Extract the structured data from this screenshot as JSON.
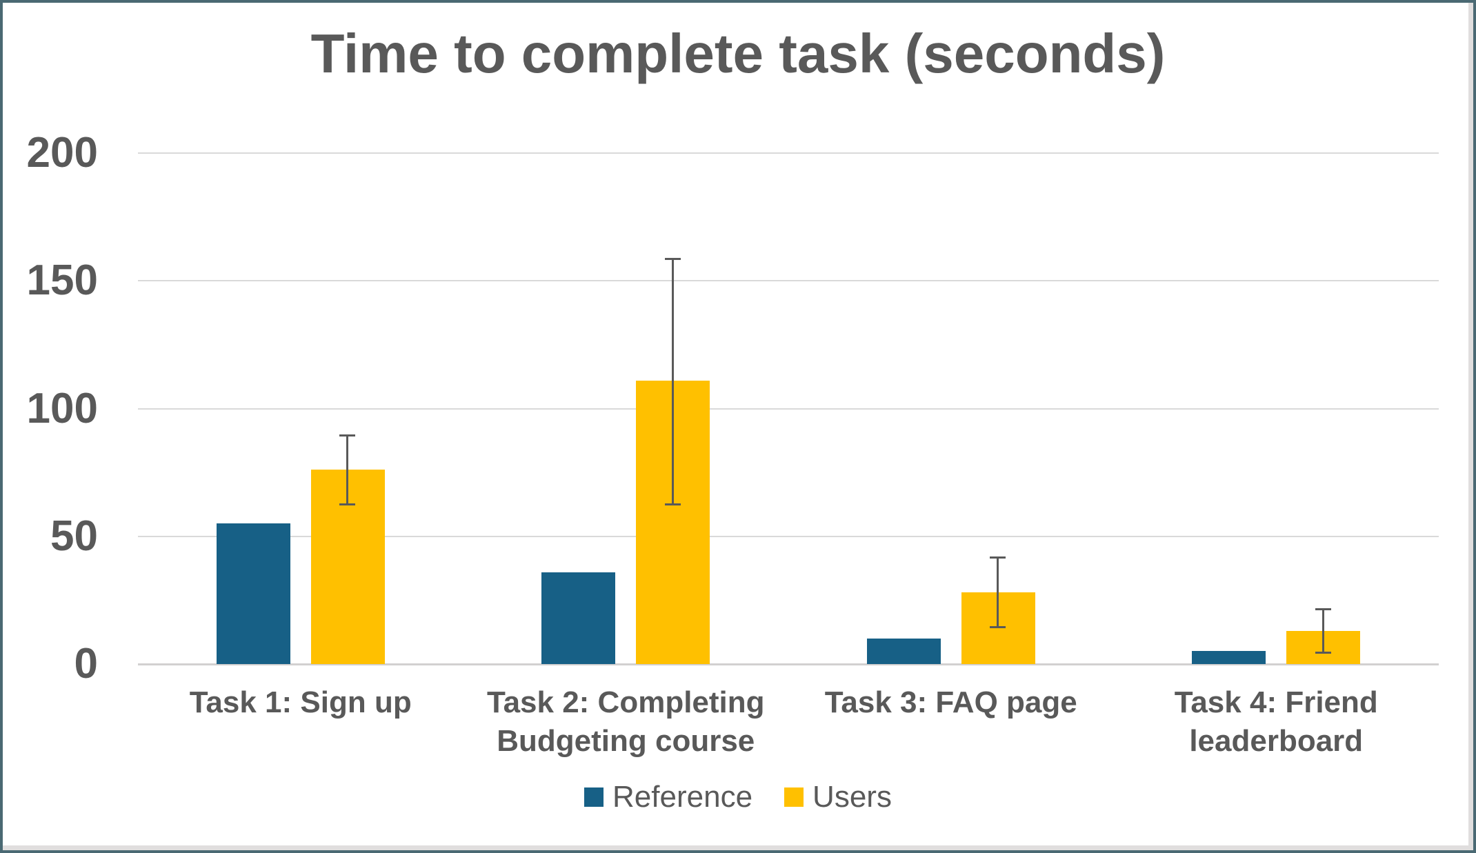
{
  "title": "Time to complete task (seconds)",
  "colors": {
    "reference": "#176086",
    "users": "#FFC000",
    "text": "#595959",
    "gridline": "#D9D9D9",
    "axis_baseline": "#D2D0D0",
    "error_bar": "#595959",
    "frame_border": "#4A6973",
    "background": "#FFFFFF"
  },
  "chart_data": {
    "type": "bar",
    "title": "Time to complete task (seconds)",
    "categories": [
      "Task 1: Sign up",
      "Task 2: Completing Budgeting course",
      "Task 3: FAQ page",
      "Task 4: Friend leaderboard"
    ],
    "series": [
      {
        "name": "Reference",
        "color": "#176086",
        "values": [
          55,
          36,
          10,
          5
        ]
      },
      {
        "name": "Users",
        "color": "#FFC000",
        "values": [
          76,
          111,
          28,
          13
        ],
        "error_bars": [
          {
            "low": 62,
            "high": 90
          },
          {
            "low": 62,
            "high": 159
          },
          {
            "low": 14,
            "high": 42
          },
          {
            "low": 4,
            "high": 22
          }
        ]
      }
    ],
    "ylim": [
      0,
      200
    ],
    "yticks": [
      0,
      50,
      100,
      150,
      200
    ],
    "ylabel": "",
    "xlabel": "",
    "grid": true,
    "legend_position": "bottom"
  }
}
